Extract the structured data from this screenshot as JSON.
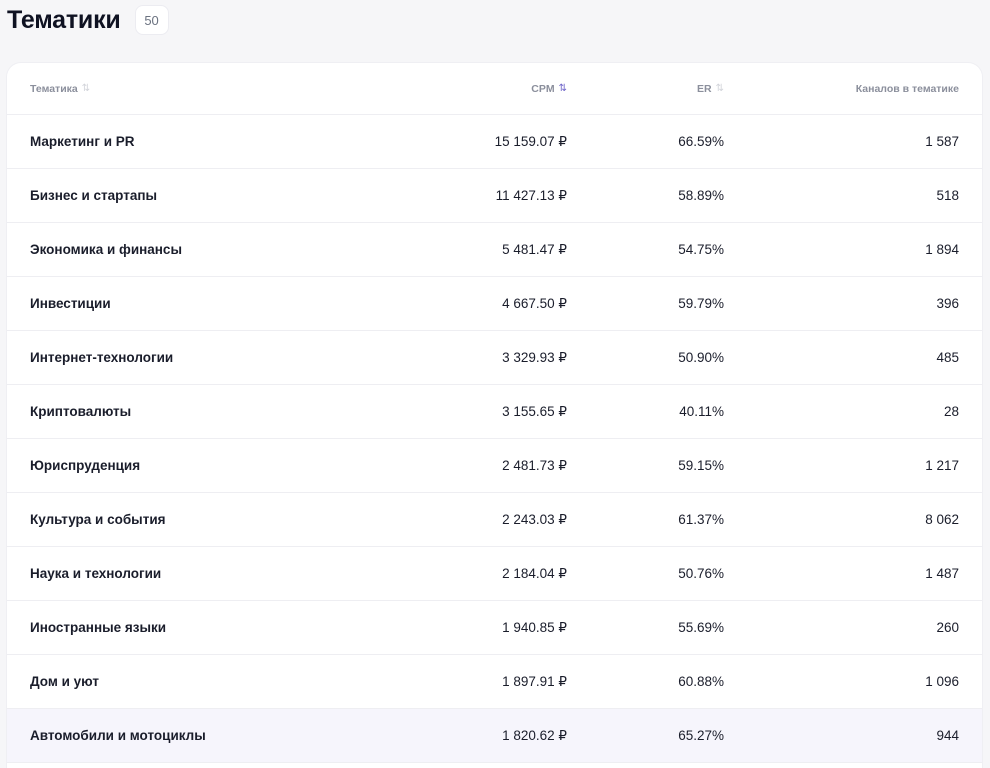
{
  "header": {
    "title": "Тематики",
    "count": "50"
  },
  "table": {
    "columns": [
      {
        "label": "Тематика",
        "sortable": true,
        "active": false
      },
      {
        "label": "CPM",
        "sortable": true,
        "active": true
      },
      {
        "label": "ER",
        "sortable": true,
        "active": false
      },
      {
        "label": "Каналов в тематике",
        "sortable": false,
        "active": false
      }
    ],
    "sort_icon": "⇅",
    "rows": [
      {
        "name": "Маркетинг и PR",
        "cpm": "15 159.07 ₽",
        "er": "66.59%",
        "channels": "1 587"
      },
      {
        "name": "Бизнес и стартапы",
        "cpm": "11 427.13 ₽",
        "er": "58.89%",
        "channels": "518"
      },
      {
        "name": "Экономика и финансы",
        "cpm": "5 481.47 ₽",
        "er": "54.75%",
        "channels": "1 894"
      },
      {
        "name": "Инвестиции",
        "cpm": "4 667.50 ₽",
        "er": "59.79%",
        "channels": "396"
      },
      {
        "name": "Интернет-технологии",
        "cpm": "3 329.93 ₽",
        "er": "50.90%",
        "channels": "485"
      },
      {
        "name": "Криптовалюты",
        "cpm": "3 155.65 ₽",
        "er": "40.11%",
        "channels": "28"
      },
      {
        "name": "Юриспруденция",
        "cpm": "2 481.73 ₽",
        "er": "59.15%",
        "channels": "1 217"
      },
      {
        "name": "Культура и события",
        "cpm": "2 243.03 ₽",
        "er": "61.37%",
        "channels": "8 062"
      },
      {
        "name": "Наука и технологии",
        "cpm": "2 184.04 ₽",
        "er": "50.76%",
        "channels": "1 487"
      },
      {
        "name": "Иностранные языки",
        "cpm": "1 940.85 ₽",
        "er": "55.69%",
        "channels": "260"
      },
      {
        "name": "Дом и уют",
        "cpm": "1 897.91 ₽",
        "er": "60.88%",
        "channels": "1 096"
      },
      {
        "name": "Автомобили и мотоциклы",
        "cpm": "1 820.62 ₽",
        "er": "65.27%",
        "channels": "944",
        "highlighted": true
      }
    ]
  },
  "colors": {
    "accent": "#6d63c8",
    "row_highlight": "#f6f5fc",
    "background": "#f6f6f8"
  }
}
